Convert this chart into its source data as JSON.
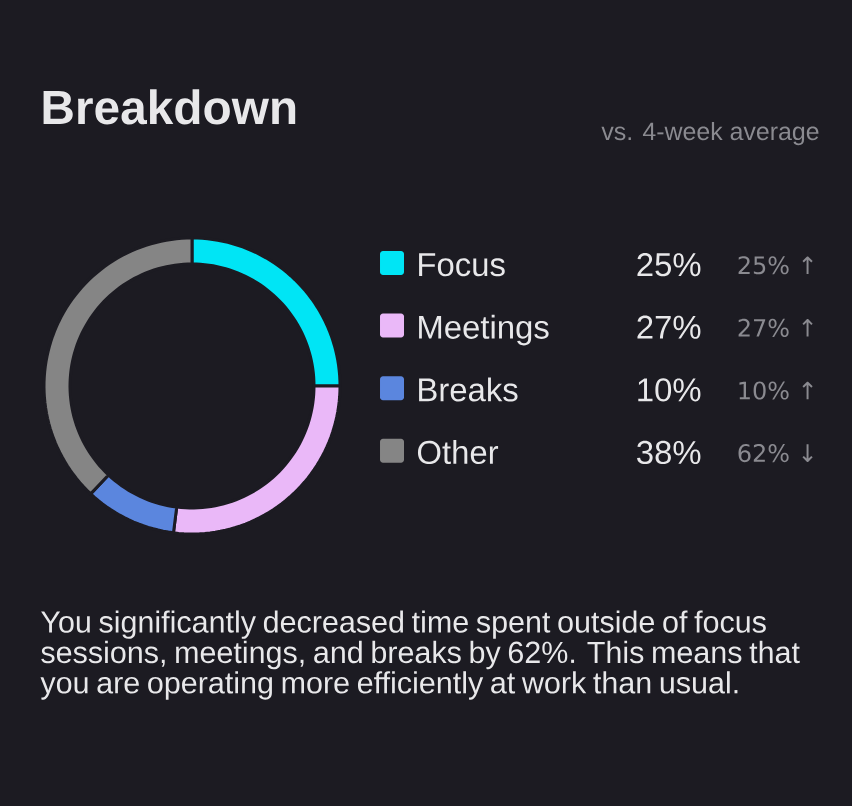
{
  "chart_data": {
    "type": "donut",
    "title": "Breakdown",
    "subtitle": "vs. 4-week average",
    "categories": [
      "Focus",
      "Meetings",
      "Breaks",
      "Other"
    ],
    "values": [
      25,
      27,
      10,
      38
    ],
    "value_labels": [
      "25%",
      "27%",
      "10%",
      "38%"
    ],
    "colors": [
      "#00e5f5",
      "#eab8f8",
      "#5b86de",
      "#858585"
    ],
    "legend": "right",
    "annotations": [
      "25% ↑",
      "27% ↑",
      "10% ↑",
      "62% ↓",
      "You significantly decreased time spent outside of focus sessions, meetings, and breaks by 62%. This means that you are operating more efficiently at work than usual."
    ]
  }
}
